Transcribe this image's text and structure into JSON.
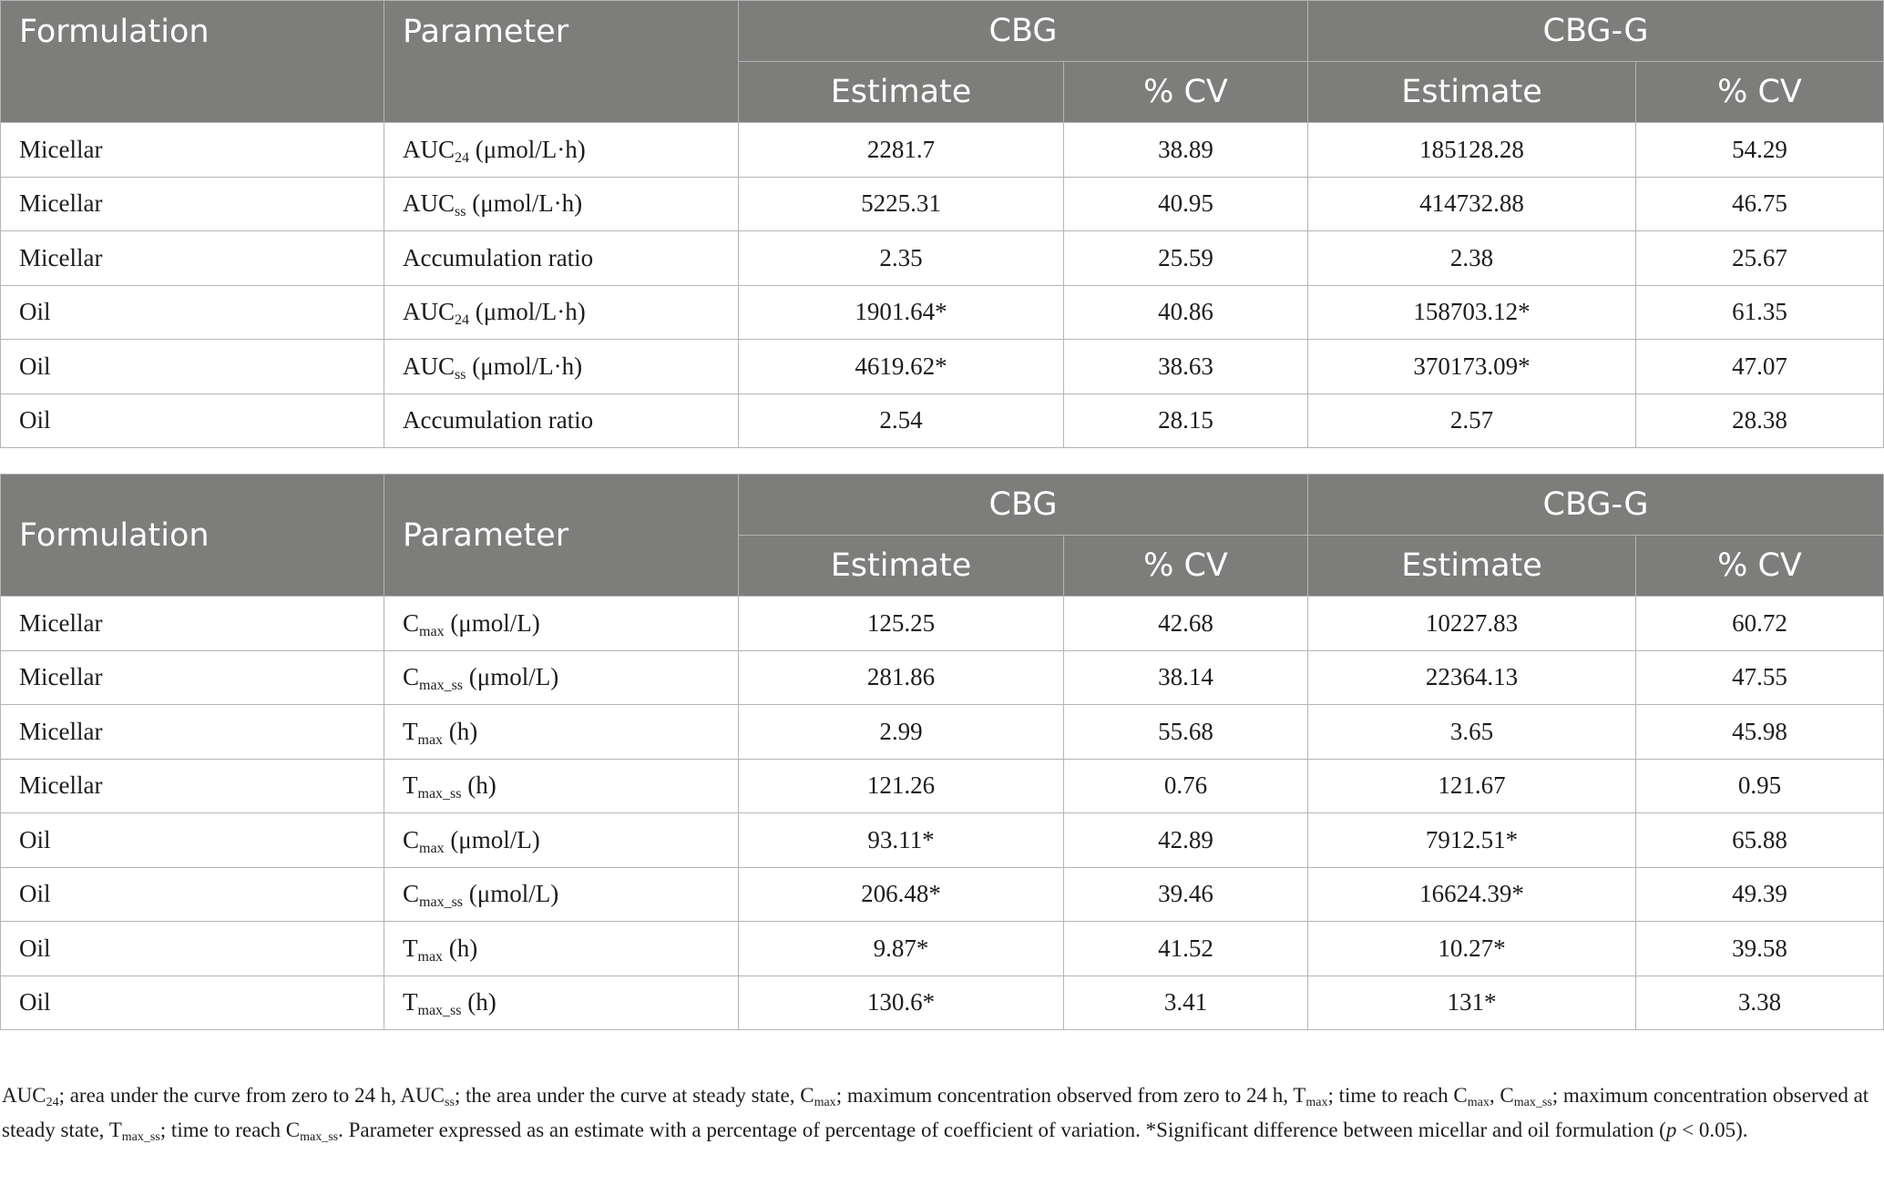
{
  "tables": [
    {
      "header": {
        "formulation": "Formulation",
        "parameter": "Parameter",
        "group1": "CBG",
        "group2": "CBG-G",
        "estimate": "Estimate",
        "cv": "% CV"
      },
      "rows": [
        {
          "formulation": "Micellar",
          "param_main": "AUC",
          "param_sub": "24",
          "param_unit": " (μmol/L·h)",
          "cbg_est": "2281.7",
          "cbg_cv": "38.89",
          "cbgg_est": "185128.28",
          "cbgg_cv": "54.29"
        },
        {
          "formulation": "Micellar",
          "param_main": "AUC",
          "param_sub": "ss",
          "param_unit": " (μmol/L·h)",
          "cbg_est": "5225.31",
          "cbg_cv": "40.95",
          "cbgg_est": "414732.88",
          "cbgg_cv": "46.75"
        },
        {
          "formulation": "Micellar",
          "param_main": "Accumulation ratio",
          "param_sub": "",
          "param_unit": "",
          "cbg_est": "2.35",
          "cbg_cv": "25.59",
          "cbgg_est": "2.38",
          "cbgg_cv": "25.67"
        },
        {
          "formulation": "Oil",
          "param_main": "AUC",
          "param_sub": "24",
          "param_unit": " (μmol/L·h)",
          "cbg_est": "1901.64*",
          "cbg_cv": "40.86",
          "cbgg_est": "158703.12*",
          "cbgg_cv": "61.35"
        },
        {
          "formulation": "Oil",
          "param_main": "AUC",
          "param_sub": "ss",
          "param_unit": " (μmol/L·h)",
          "cbg_est": "4619.62*",
          "cbg_cv": "38.63",
          "cbgg_est": "370173.09*",
          "cbgg_cv": "47.07"
        },
        {
          "formulation": "Oil",
          "param_main": "Accumulation ratio",
          "param_sub": "",
          "param_unit": "",
          "cbg_est": "2.54",
          "cbg_cv": "28.15",
          "cbgg_est": "2.57",
          "cbgg_cv": "28.38"
        }
      ]
    },
    {
      "header": {
        "formulation": "Formulation",
        "parameter": "Parameter",
        "group1": "CBG",
        "group2": "CBG-G",
        "estimate": "Estimate",
        "cv": "% CV"
      },
      "rows": [
        {
          "formulation": "Micellar",
          "param_main": "C",
          "param_sub": "max",
          "param_unit": " (μmol/L)",
          "cbg_est": "125.25",
          "cbg_cv": "42.68",
          "cbgg_est": "10227.83",
          "cbgg_cv": "60.72"
        },
        {
          "formulation": "Micellar",
          "param_main": "C",
          "param_sub": "max_ss",
          "param_unit": " (μmol/L)",
          "cbg_est": "281.86",
          "cbg_cv": "38.14",
          "cbgg_est": "22364.13",
          "cbgg_cv": "47.55"
        },
        {
          "formulation": "Micellar",
          "param_main": "T",
          "param_sub": "max",
          "param_unit": " (h)",
          "cbg_est": "2.99",
          "cbg_cv": "55.68",
          "cbgg_est": "3.65",
          "cbgg_cv": "45.98"
        },
        {
          "formulation": "Micellar",
          "param_main": "T",
          "param_sub": "max_ss",
          "param_unit": " (h)",
          "cbg_est": "121.26",
          "cbg_cv": "0.76",
          "cbgg_est": "121.67",
          "cbgg_cv": "0.95"
        },
        {
          "formulation": "Oil",
          "param_main": "C",
          "param_sub": "max",
          "param_unit": " (μmol/L)",
          "cbg_est": "93.11*",
          "cbg_cv": "42.89",
          "cbgg_est": "7912.51*",
          "cbgg_cv": "65.88"
        },
        {
          "formulation": "Oil",
          "param_main": "C",
          "param_sub": "max_ss",
          "param_unit": " (μmol/L)",
          "cbg_est": "206.48*",
          "cbg_cv": "39.46",
          "cbgg_est": "16624.39*",
          "cbgg_cv": "49.39"
        },
        {
          "formulation": "Oil",
          "param_main": "T",
          "param_sub": "max",
          "param_unit": " (h)",
          "cbg_est": "9.87*",
          "cbg_cv": "41.52",
          "cbgg_est": "10.27*",
          "cbgg_cv": "39.58"
        },
        {
          "formulation": "Oil",
          "param_main": "T",
          "param_sub": "max_ss",
          "param_unit": " (h)",
          "cbg_est": "130.6*",
          "cbg_cv": "3.41",
          "cbgg_est": "131*",
          "cbgg_cv": "3.38"
        }
      ]
    }
  ],
  "footnote": {
    "t1": "AUC",
    "s1": "24",
    "t2": "; area under the curve from zero to 24 h, AUC",
    "s2": "ss",
    "t3": "; the area under the curve at steady state, C",
    "s3": "max",
    "t4": "; maximum concentration observed from zero to 24 h, T",
    "s4": "max",
    "t5": "; time to reach C",
    "s5": "max",
    "t6": ", C",
    "s6": "max_ss",
    "t7": "; maximum concentration observed at steady state, T",
    "s7": "max_ss",
    "t8": "; time to reach C",
    "s8": "max_ss",
    "t9": ". Parameter expressed as an estimate with a percentage of percentage of coefficient of variation. *Significant difference between micellar and oil formulation (",
    "t10": "p",
    "t11": " < 0.05)."
  }
}
